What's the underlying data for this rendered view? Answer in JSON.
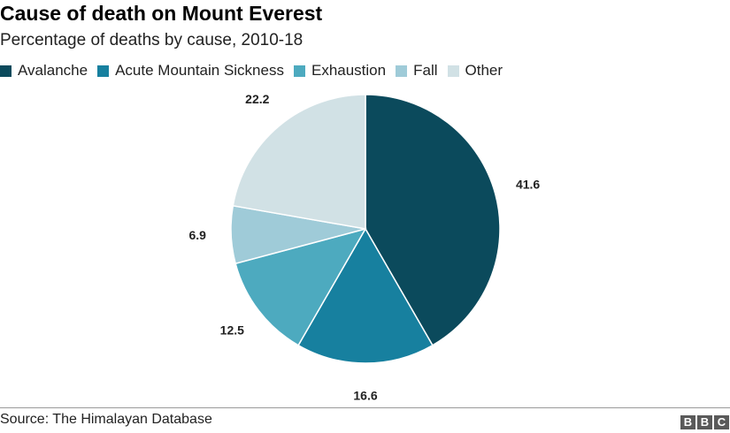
{
  "title": "Cause of death on Mount Everest",
  "subtitle": "Percentage of deaths by cause, 2010-18",
  "source": "Source: The Himalayan Database",
  "logo_letters": [
    "B",
    "B",
    "C"
  ],
  "chart_data": {
    "type": "pie",
    "title": "Cause of death on Mount Everest",
    "subtitle": "Percentage of deaths by cause, 2010-18",
    "categories": [
      "Avalanche",
      "Acute Mountain Sickness",
      "Exhaustion",
      "Fall",
      "Other"
    ],
    "values": [
      41.6,
      16.6,
      12.5,
      6.9,
      22.2
    ],
    "value_labels": [
      "41.6",
      "16.6",
      "12.5",
      "6.9",
      "22.2"
    ],
    "colors": [
      "#0b4a5c",
      "#17809f",
      "#4daabf",
      "#9fcbd8",
      "#d1e1e5"
    ],
    "start": "12 o'clock",
    "direction": "clockwise",
    "legend_position": "top-left"
  }
}
